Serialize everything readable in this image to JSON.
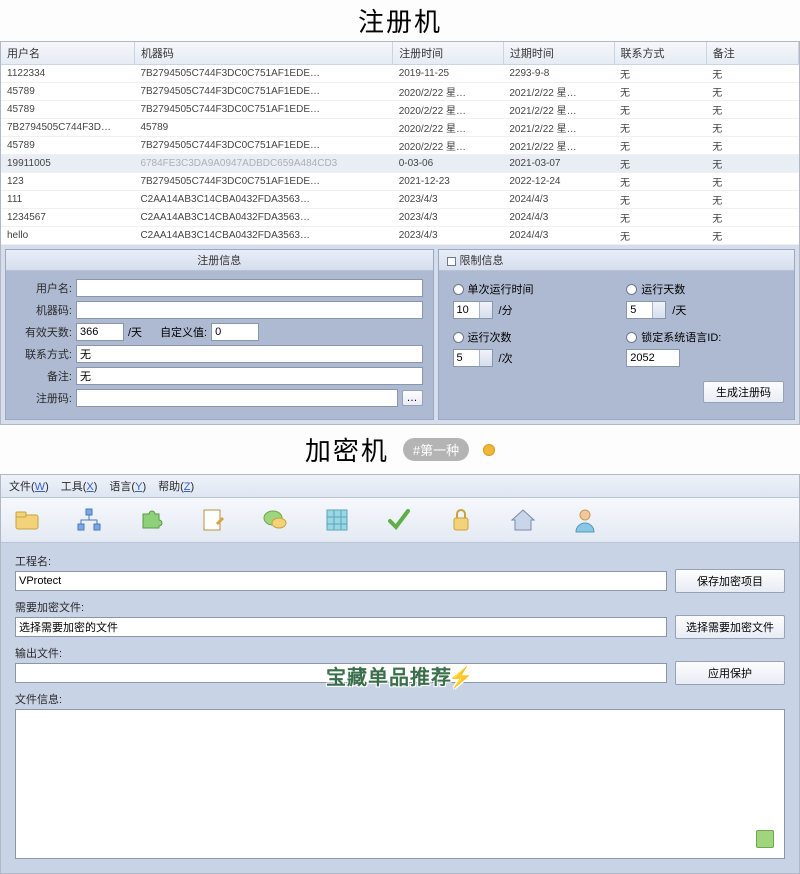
{
  "titles": {
    "top": "注册机",
    "bottom": "加密机",
    "tag": "#第一种"
  },
  "table": {
    "columns": [
      "用户名",
      "机器码",
      "注册时间",
      "过期时间",
      "联系方式",
      "备注"
    ],
    "col_widths": [
      "14%",
      "28%",
      "12%",
      "12%",
      "10%",
      "10%"
    ],
    "rows": [
      [
        "1122334",
        "7B2794505C744F3DC0C751AF1EDE…",
        "2019-11-25",
        "2293-9-8",
        "无",
        "无"
      ],
      [
        "45789",
        "7B2794505C744F3DC0C751AF1EDE…",
        "2020/2/22 星…",
        "2021/2/22 星…",
        "无",
        "无"
      ],
      [
        "45789",
        "7B2794505C744F3DC0C751AF1EDE…",
        "2020/2/22 星…",
        "2021/2/22 星…",
        "无",
        "无"
      ],
      [
        "7B2794505C744F3D…",
        "45789",
        "2020/2/22 星…",
        "2021/2/22 星…",
        "无",
        "无"
      ],
      [
        "45789",
        "7B2794505C744F3DC0C751AF1EDE…",
        "2020/2/22 星…",
        "2021/2/22 星…",
        "无",
        "无"
      ],
      [
        "19911005",
        "6784FE3C3DA9A0947ADBDC659A484CD3",
        "0-03-06",
        "2021-03-07",
        "无",
        "无"
      ],
      [
        "123",
        "7B2794505C744F3DC0C751AF1EDE…",
        "2021-12-23",
        "2022-12-24",
        "无",
        "无"
      ],
      [
        "111",
        "C2AA14AB3C14CBA0432FDA3563…",
        "2023/4/3",
        "2024/4/3",
        "无",
        "无"
      ],
      [
        "1234567",
        "C2AA14AB3C14CBA0432FDA3563…",
        "2023/4/3",
        "2024/4/3",
        "无",
        "无"
      ],
      [
        "hello",
        "C2AA14AB3C14CBA0432FDA3563…",
        "2023/4/3",
        "2024/4/3",
        "无",
        "无"
      ]
    ],
    "highlight_row": 5
  },
  "reg_panel": {
    "title": "注册信息",
    "labels": {
      "user": "用户名:",
      "machine": "机器码:",
      "days": "有效天数:",
      "days_unit": "/天",
      "custom": "自定义值:",
      "contact": "联系方式:",
      "remark": "备注:",
      "code": "注册码:"
    },
    "values": {
      "days": "366",
      "custom": "0",
      "contact": "无",
      "remark": "无"
    }
  },
  "limit_panel": {
    "title": "限制信息",
    "items": {
      "single_run": {
        "label": "单次运行时间",
        "value": "10",
        "unit": "/分"
      },
      "run_days": {
        "label": "运行天数",
        "value": "5",
        "unit": "/天"
      },
      "run_count": {
        "label": "运行次数",
        "value": "5",
        "unit": "/次"
      },
      "lang_id": {
        "label": "锁定系统语言ID:",
        "value": "2052",
        "unit": ""
      }
    },
    "button": "生成注册码"
  },
  "win2": {
    "menu": [
      "文件(W)",
      "工具(X)",
      "语言(Y)",
      "帮助(Z)"
    ],
    "labels": {
      "project": "工程名:",
      "need_enc": "需要加密文件:",
      "output": "输出文件:",
      "fileinfo": "文件信息:"
    },
    "values": {
      "project": "VProtect",
      "need_enc": "选择需要加密的文件"
    },
    "buttons": {
      "save": "保存加密项目",
      "select": "选择需要加密文件",
      "apply": "应用保护"
    }
  },
  "watermark": "宝藏单品推荐",
  "colors": {
    "panel_bg": "#aebad2",
    "border": "#8a96ac"
  }
}
